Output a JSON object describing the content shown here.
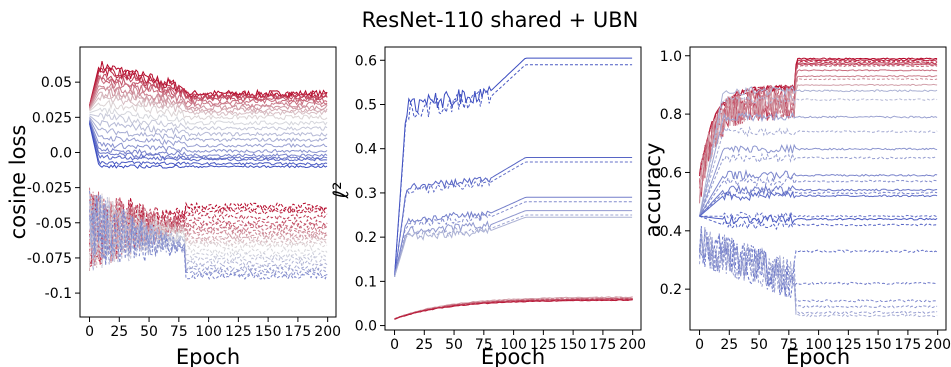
{
  "title": "ResNet-110 shared + UBN",
  "colors": {
    "cool": "#3b4cc0",
    "mid": "#dddddd",
    "warm": "#b40426"
  },
  "chart_data": [
    {
      "type": "line",
      "xlabel": "Epoch",
      "ylabel": "cosine loss",
      "xlim": [
        -8,
        207
      ],
      "ylim": [
        -0.117,
        0.075
      ],
      "xticks": [
        0,
        25,
        50,
        75,
        100,
        125,
        150,
        175,
        200
      ],
      "xtick_labels": [
        "0",
        "25",
        "50",
        "75",
        "100",
        "125",
        "150",
        "175",
        "200"
      ],
      "yticks": [
        0.05,
        0.025,
        0.0,
        -0.025,
        -0.05,
        -0.075,
        -0.1
      ],
      "ytick_labels": [
        "0.05",
        "0.025",
        "0.0",
        "-0.025",
        "-0.05",
        "-0.075",
        "-0.1"
      ],
      "grid": false,
      "legend": "none",
      "notes": "Two families of curves colored by a cool-to-warm gradient; solid lines are mostly positive, dashed lines are negative",
      "solid_final": [
        0.042,
        0.041,
        0.04,
        0.039,
        0.038,
        0.036,
        0.034,
        0.032,
        0.03,
        0.028,
        0.025,
        0.021,
        0.017,
        0.013,
        0.009,
        0.005,
        0.001,
        -0.002,
        -0.004,
        -0.005,
        -0.008,
        -0.01
      ],
      "dashed_final": [
        -0.038,
        -0.04,
        -0.042,
        -0.046,
        -0.05,
        -0.052,
        -0.054,
        -0.056,
        -0.058,
        -0.06,
        -0.062,
        -0.064,
        -0.066,
        -0.07,
        -0.073,
        -0.076,
        -0.079,
        -0.082,
        -0.084,
        -0.086,
        -0.088
      ]
    },
    {
      "type": "line",
      "xlabel": "Epoch",
      "ylabel": "ℓ²",
      "xlim": [
        -8,
        207
      ],
      "ylim": [
        -0.01,
        0.63
      ],
      "xticks": [
        0,
        25,
        50,
        75,
        100,
        125,
        150,
        175,
        200
      ],
      "xtick_labels": [
        "0",
        "25",
        "50",
        "75",
        "100",
        "125",
        "150",
        "175",
        "200"
      ],
      "yticks": [
        0.0,
        0.1,
        0.2,
        0.3,
        0.4,
        0.5,
        0.6
      ],
      "ytick_labels": [
        "0.0",
        "0.1",
        "0.2",
        "0.3",
        "0.4",
        "0.5",
        "0.6"
      ],
      "grid": false,
      "legend": "none",
      "blue_final": [
        0.605,
        0.59,
        0.38,
        0.37,
        0.29,
        0.28,
        0.26,
        0.25,
        0.245
      ],
      "red_final": [
        0.065,
        0.063,
        0.062,
        0.061,
        0.06,
        0.059,
        0.058
      ]
    },
    {
      "type": "line",
      "xlabel": "Epoch",
      "ylabel": "accuracy",
      "xlim": [
        -8,
        207
      ],
      "ylim": [
        0.06,
        1.03
      ],
      "xticks": [
        0,
        25,
        50,
        75,
        100,
        125,
        150,
        175,
        200
      ],
      "xtick_labels": [
        "0",
        "25",
        "50",
        "75",
        "100",
        "125",
        "150",
        "175",
        "200"
      ],
      "yticks": [
        0.2,
        0.4,
        0.6,
        0.8,
        1.0
      ],
      "ytick_labels": [
        "0.2",
        "0.4",
        "0.6",
        "0.8",
        "1.0"
      ],
      "grid": false,
      "legend": "none",
      "top_final": [
        0.99,
        0.985,
        0.98,
        0.975,
        0.97,
        0.965,
        0.95,
        0.93,
        0.92,
        0.9
      ],
      "mid_final": [
        0.88,
        0.85,
        0.79,
        0.74,
        0.68,
        0.65,
        0.59,
        0.57,
        0.54,
        0.53,
        0.52,
        0.45,
        0.44,
        0.42
      ],
      "low_final": [
        0.33,
        0.22,
        0.16,
        0.14,
        0.12,
        0.11
      ]
    }
  ]
}
